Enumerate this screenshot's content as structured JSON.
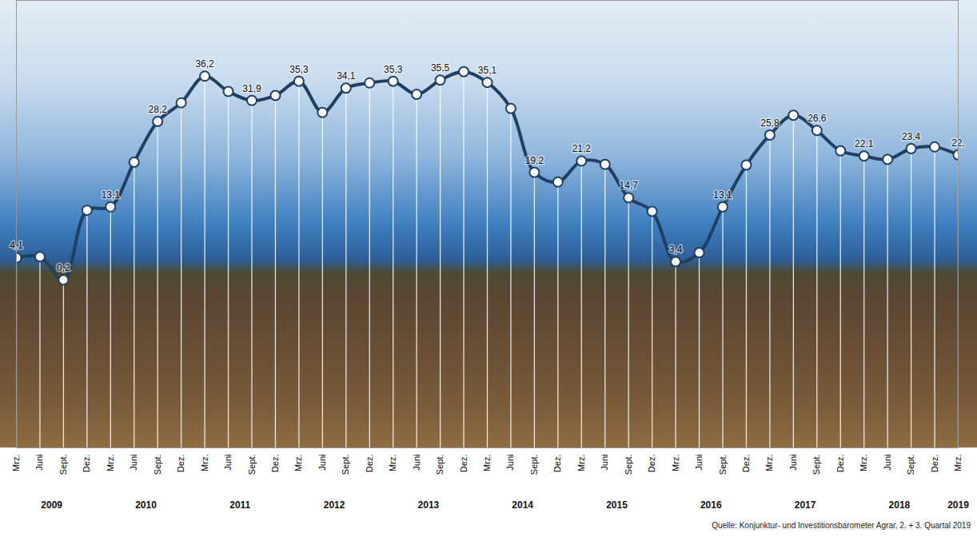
{
  "chart_data": {
    "type": "line",
    "caption": "Quelle: Konjunktur- und Investitionsbarometer Agrar, 2. + 3. Quartal 2019",
    "categories": [
      "Mrz.",
      "Juni",
      "Sept.",
      "Dez.",
      "Mrz.",
      "Juni",
      "Sept.",
      "Dez.",
      "Mrz.",
      "Juni",
      "Sept.",
      "Dez.",
      "Mrz.",
      "Juni",
      "Sept.",
      "Dez.",
      "Mrz.",
      "Juni",
      "Sept.",
      "Dez.",
      "Mrz.",
      "Juni",
      "Sept.",
      "Dez.",
      "Mrz.",
      "Juni",
      "Sept.",
      "Dez.",
      "Mrz.",
      "Juni",
      "Sept.",
      "Dez.",
      "Mrz.",
      "Juni",
      "Sept.",
      "Dez.",
      "Mrz.",
      "Juni",
      "Sept.",
      "Dez.",
      "Mrz."
    ],
    "years": [
      "2009",
      "2010",
      "2011",
      "2012",
      "2013",
      "2014",
      "2015",
      "2016",
      "2017",
      "2018",
      "2019"
    ],
    "values": [
      4.1,
      4.3,
      0.2,
      12.5,
      13.1,
      21.0,
      28.2,
      31.5,
      36.2,
      33.5,
      31.9,
      32.8,
      35.3,
      29.8,
      34.1,
      35.0,
      35.3,
      33.0,
      35.5,
      37.0,
      35.1,
      30.5,
      19.2,
      17.5,
      21.2,
      20.6,
      14.7,
      12.3,
      3.4,
      5.0,
      13.1,
      20.5,
      25.8,
      29.3,
      26.6,
      23.0,
      22.1,
      21.5,
      23.4,
      23.7,
      22.3
    ],
    "value_labels": [
      "4,1",
      null,
      "0,2",
      null,
      "13,1",
      null,
      "28,2",
      null,
      "36,2",
      null,
      "31,9",
      null,
      "35,3",
      null,
      "34,1",
      null,
      "35,3",
      null,
      "35,5",
      null,
      "35,1",
      null,
      "19,2",
      null,
      "21,2",
      null,
      "14,7",
      null,
      "3,4",
      null,
      "13,1",
      null,
      "25,8",
      null,
      "26,6",
      null,
      "22,1",
      null,
      "23,4",
      null,
      "22,"
    ],
    "color": "#1f3f63",
    "ylim": [
      -29.5,
      49.6
    ],
    "yticks": [],
    "tick_labels": "x",
    "data_labels": true,
    "marker": "circle",
    "line_style": "solid"
  }
}
